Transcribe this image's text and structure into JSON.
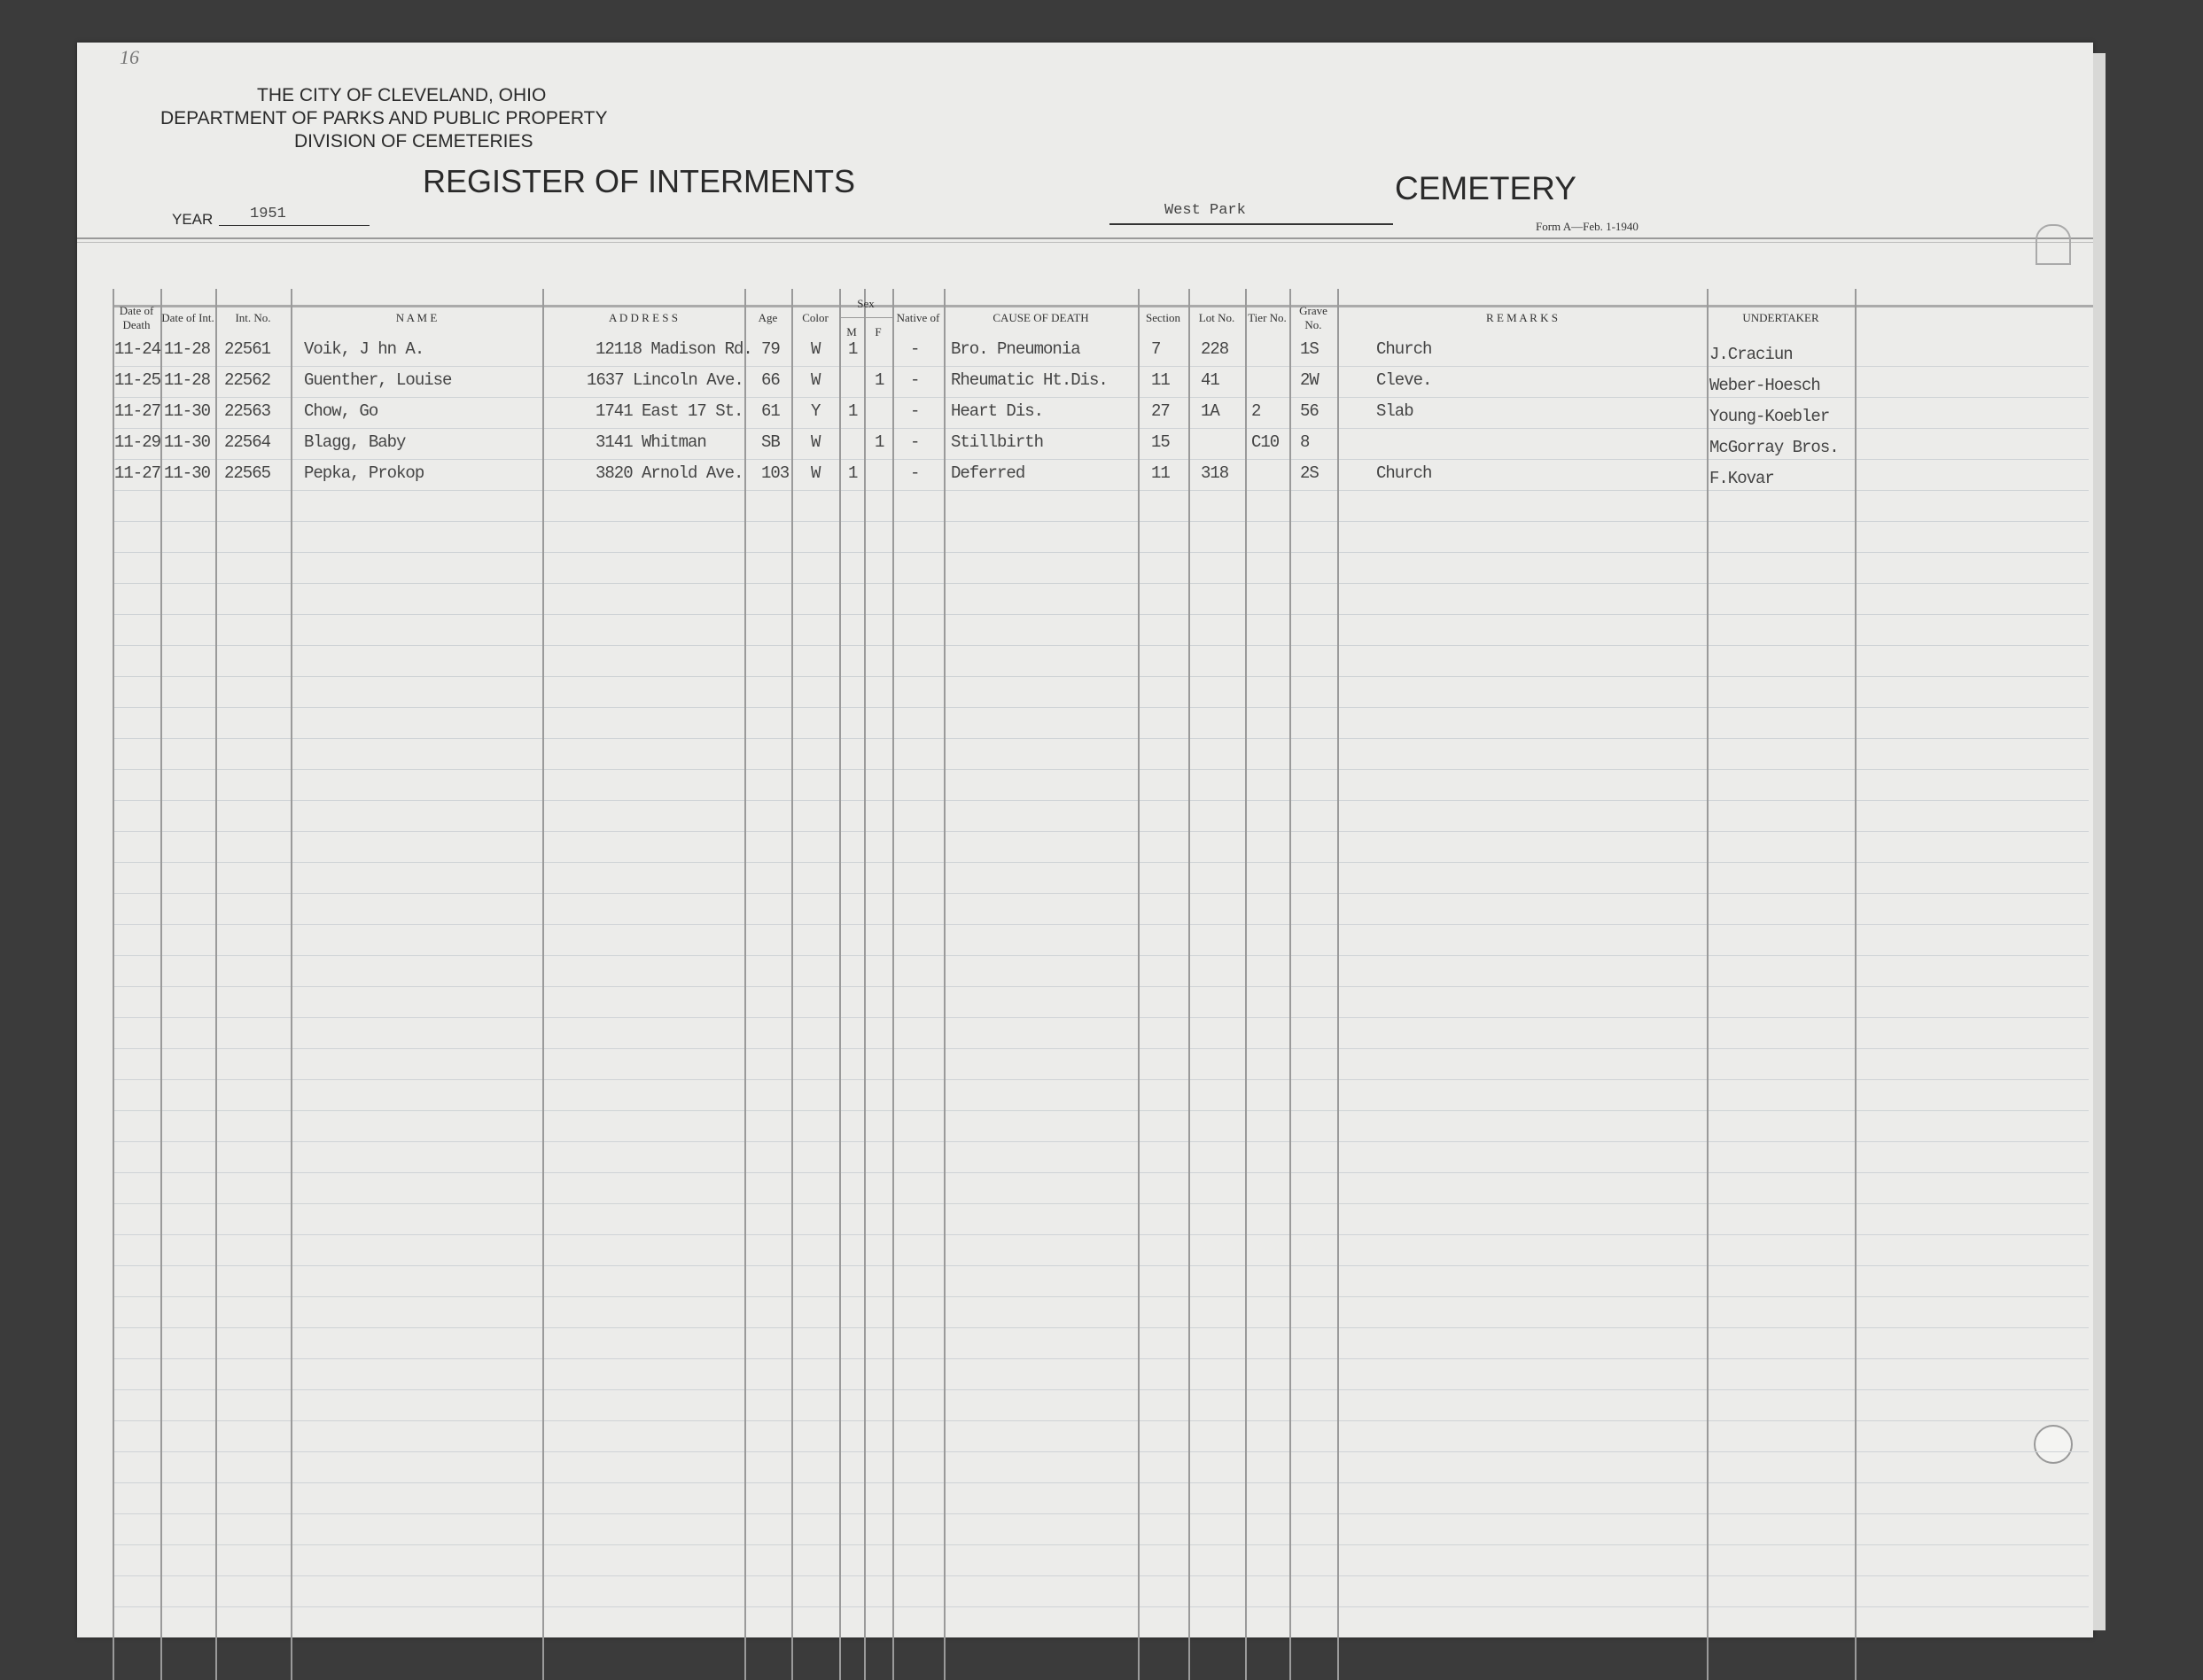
{
  "page_number": "16",
  "header": {
    "line1": "THE CITY OF CLEVELAND, OHIO",
    "line2": "DEPARTMENT OF PARKS AND PUBLIC PROPERTY",
    "line3": "DIVISION OF CEMETERIES",
    "title": "REGISTER OF INTERMENTS",
    "cemetery_name": "West Park",
    "cemetery_label": "CEMETERY",
    "year_label": "YEAR",
    "year": "1951",
    "form": "Form A—Feb. 1-1940"
  },
  "columns": {
    "date_death": "Date of Death",
    "date_int": "Date of Int.",
    "int_no": "Int. No.",
    "name": "N A M E",
    "address": "A D D R E S S",
    "age": "Age",
    "color": "Color",
    "sex": "Sex",
    "sex_m": "M",
    "sex_f": "F",
    "native": "Native of",
    "cause": "CAUSE OF DEATH",
    "section": "Section",
    "lot": "Lot No.",
    "tier": "Tier No.",
    "grave": "Grave No.",
    "remarks": "R E M A R K S",
    "undertaker": "UNDERTAKER"
  },
  "rows": [
    {
      "date_death": "11-24",
      "date_int": "11-28",
      "int_no": "22561",
      "name": "Voik, J hn A.",
      "address": "12118 Madison Rd.",
      "age": "79",
      "color": "W",
      "m": "1",
      "f": "",
      "native": "-",
      "cause": "Bro. Pneumonia",
      "section": "7",
      "lot": "228",
      "tier": "",
      "grave": "1S",
      "remarks": "Church",
      "undertaker": "J.Craciun"
    },
    {
      "date_death": "11-25",
      "date_int": "11-28",
      "int_no": "22562",
      "name": "Guenther, Louise",
      "address": "1637 Lincoln Ave.",
      "age": "66",
      "color": "W",
      "m": "",
      "f": "1",
      "native": "-",
      "cause": "Rheumatic Ht.Dis.",
      "section": "11",
      "lot": "41",
      "tier": "",
      "grave": "2W",
      "remarks": "Cleve.",
      "undertaker": "Weber-Hoesch"
    },
    {
      "date_death": "11-27",
      "date_int": "11-30",
      "int_no": "22563",
      "name": "Chow, Go",
      "address": "1741 East 17 St.",
      "age": "61",
      "color": "Y",
      "m": "1",
      "f": "",
      "native": "-",
      "cause": "Heart Dis.",
      "section": "27",
      "lot": "1A",
      "tier": "2",
      "grave": "56",
      "remarks": "Slab",
      "undertaker": "Young-Koebler"
    },
    {
      "date_death": "11-29",
      "date_int": "11-30",
      "int_no": "22564",
      "name": "Blagg, Baby",
      "address": "3141 Whitman",
      "age": "SB",
      "color": "W",
      "m": "",
      "f": "1",
      "native": "-",
      "cause": "Stillbirth",
      "section": "15",
      "lot": "",
      "tier": "C10",
      "grave": "8",
      "remarks": "",
      "undertaker": "McGorray Bros."
    },
    {
      "date_death": "11-27",
      "date_int": "11-30",
      "int_no": "22565",
      "name": "Pepka, Prokop",
      "address": "3820 Arnold Ave.",
      "age": "103",
      "color": "W",
      "m": "1",
      "f": "",
      "native": "-",
      "cause": "Deferred",
      "section": "11",
      "lot": "318",
      "tier": "",
      "grave": "2S",
      "remarks": "Church",
      "undertaker": "F.Kovar"
    }
  ]
}
